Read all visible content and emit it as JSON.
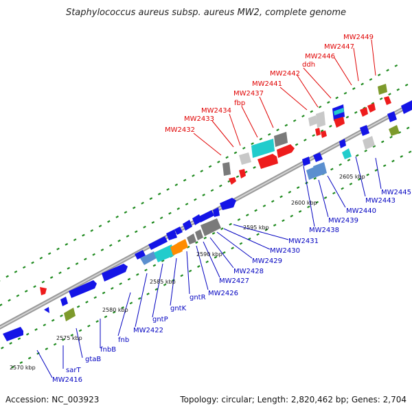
{
  "title": "Staphylococcus aureus subsp. aureus MW2, complete genome",
  "accession": "Accession: NC_003923",
  "topology_info": "Topology: circular; Length: 2,820,462 bp; Genes: 2,704",
  "ticks": [
    "2570 kbp",
    "2575 kbp",
    "2580 kbp",
    "2585 kbp",
    "2590 kbp",
    "2595 kbp",
    "2600 kbp",
    "2605 kbp"
  ],
  "top_labels": [
    "MW2432",
    "MW2433",
    "MW2434",
    "fbp",
    "MW2437",
    "MW2441",
    "MW2442",
    "ddh",
    "MW2446",
    "MW2447",
    "MW2449"
  ],
  "bottom_labels": [
    "MW2416",
    "sarT",
    "gtaB",
    "fnbB",
    "fnb",
    "MW2422",
    "gntP",
    "gntK",
    "gntR",
    "MW2426",
    "MW2427",
    "MW2428",
    "MW2429",
    "MW2430",
    "MW2431",
    "MW2438",
    "MW2439",
    "MW2440",
    "MW2443",
    "MW2445"
  ],
  "colors": {
    "forward_gene": "#ee1c1c",
    "reverse_gene": "#1414e6",
    "grey_feature": "#7a7a7a",
    "light_grey_feature": "#c8c8c8",
    "cyan_feature": "#22cccc",
    "orange_feature": "#ff8c00",
    "olive_feature": "#7d9a2c",
    "steel_blue_feature": "#5b8fcf",
    "dash_green": "#1e8a1e"
  }
}
